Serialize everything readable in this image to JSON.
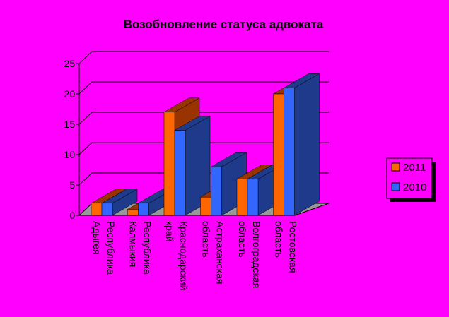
{
  "chart_data": {
    "type": "bar3d",
    "title": "Возобновление статуса адвоката",
    "categories": [
      "Республика Адыгея",
      "Республика Калмыкия",
      "Краснодарский край",
      "Астраханская область",
      "Волгоградская область",
      "Ростовская область"
    ],
    "series": [
      {
        "name": "2011",
        "color": "#ff6600",
        "values": [
          2,
          1,
          17,
          3,
          6,
          20
        ]
      },
      {
        "name": "2010",
        "color": "#3366ff",
        "values": [
          2,
          2,
          14,
          8,
          6,
          21
        ]
      }
    ],
    "ylim": [
      0,
      25
    ],
    "yticks": [
      0,
      5,
      10,
      15,
      20,
      25
    ],
    "grid": true,
    "legend": "right"
  }
}
